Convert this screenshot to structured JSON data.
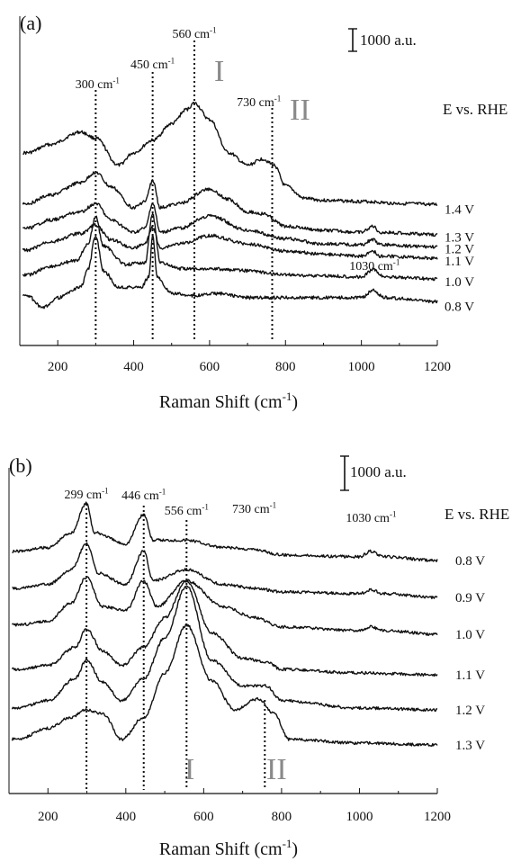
{
  "chart_data": [
    {
      "type": "line",
      "panel_label": "(a)",
      "xlabel": "Raman Shift (cm",
      "xlabel_sup": "-1",
      "xlabel_close": ")",
      "xlim": [
        100,
        1200
      ],
      "xticks": [
        200,
        400,
        600,
        800,
        1000,
        1200
      ],
      "scale_bar": "1000 a.u.",
      "legend_title": "E vs. RHE",
      "grid": false,
      "peaks": [
        {
          "x": 300,
          "label": "300 cm",
          "sup": "-1"
        },
        {
          "x": 450,
          "label": "450 cm",
          "sup": "-1"
        },
        {
          "x": 560,
          "label": "560 cm",
          "sup": "-1"
        },
        {
          "x": 730,
          "label": "730 cm",
          "sup": "-1"
        },
        {
          "x": 1030,
          "label": "1030 cm",
          "sup": "-1"
        }
      ],
      "bands": [
        "I",
        "II"
      ],
      "series": [
        {
          "name": "1.4 V",
          "offset": 4.8,
          "points": [
            [
              120,
              2.6
            ],
            [
              180,
              3.0
            ],
            [
              260,
              3.6
            ],
            [
              300,
              3.3
            ],
            [
              360,
              2.0
            ],
            [
              400,
              2.6
            ],
            [
              450,
              3.2
            ],
            [
              500,
              4.0
            ],
            [
              540,
              4.7
            ],
            [
              560,
              5.0
            ],
            [
              600,
              4.2
            ],
            [
              650,
              2.6
            ],
            [
              700,
              2.0
            ],
            [
              740,
              2.3
            ],
            [
              770,
              2.0
            ],
            [
              800,
              1.0
            ],
            [
              850,
              0.4
            ],
            [
              900,
              0.3
            ],
            [
              1000,
              0.25
            ],
            [
              1100,
              0.15
            ],
            [
              1200,
              0.1
            ]
          ]
        },
        {
          "name": "1.3 V",
          "offset": 3.35,
          "points": [
            [
              120,
              1.6
            ],
            [
              180,
              2.0
            ],
            [
              260,
              2.6
            ],
            [
              300,
              3.1
            ],
            [
              340,
              2.4
            ],
            [
              400,
              1.4
            ],
            [
              430,
              1.7
            ],
            [
              450,
              2.7
            ],
            [
              470,
              1.4
            ],
            [
              520,
              1.6
            ],
            [
              600,
              2.3
            ],
            [
              650,
              1.8
            ],
            [
              700,
              1.2
            ],
            [
              740,
              1.1
            ],
            [
              800,
              0.5
            ],
            [
              900,
              0.3
            ],
            [
              1000,
              0.2
            ],
            [
              1030,
              0.5
            ],
            [
              1050,
              0.2
            ],
            [
              1200,
              0.1
            ]
          ]
        },
        {
          "name": "1.2 V",
          "offset": 2.75,
          "points": [
            [
              120,
              1.0
            ],
            [
              180,
              1.4
            ],
            [
              260,
              1.8
            ],
            [
              300,
              2.2
            ],
            [
              340,
              1.4
            ],
            [
              400,
              0.8
            ],
            [
              430,
              1.0
            ],
            [
              450,
              2.2
            ],
            [
              470,
              0.8
            ],
            [
              520,
              1.0
            ],
            [
              600,
              1.6
            ],
            [
              700,
              0.9
            ],
            [
              800,
              0.5
            ],
            [
              900,
              0.25
            ],
            [
              1000,
              0.2
            ],
            [
              1030,
              0.45
            ],
            [
              1050,
              0.2
            ],
            [
              1200,
              0.1
            ]
          ]
        },
        {
          "name": "1.1 V",
          "offset": 2.2,
          "points": [
            [
              120,
              0.5
            ],
            [
              180,
              0.9
            ],
            [
              260,
              1.3
            ],
            [
              300,
              1.7
            ],
            [
              340,
              1.0
            ],
            [
              400,
              0.6
            ],
            [
              430,
              0.8
            ],
            [
              450,
              1.6
            ],
            [
              470,
              0.6
            ],
            [
              520,
              0.8
            ],
            [
              600,
              1.2
            ],
            [
              700,
              0.8
            ],
            [
              800,
              0.45
            ],
            [
              900,
              0.3
            ],
            [
              1000,
              0.2
            ],
            [
              1030,
              0.45
            ],
            [
              1050,
              0.2
            ],
            [
              1200,
              0.1
            ]
          ]
        },
        {
          "name": "1.0 V",
          "offset": 1.2,
          "points": [
            [
              120,
              0.3
            ],
            [
              180,
              0.7
            ],
            [
              250,
              1.0
            ],
            [
              280,
              1.8
            ],
            [
              300,
              3.1
            ],
            [
              320,
              1.7
            ],
            [
              380,
              0.8
            ],
            [
              430,
              0.9
            ],
            [
              450,
              3.2
            ],
            [
              470,
              0.9
            ],
            [
              520,
              0.6
            ],
            [
              600,
              0.6
            ],
            [
              700,
              0.5
            ],
            [
              800,
              0.3
            ],
            [
              900,
              0.25
            ],
            [
              1000,
              0.2
            ],
            [
              1030,
              0.55
            ],
            [
              1060,
              0.2
            ],
            [
              1200,
              0.1
            ]
          ]
        },
        {
          "name": "0.8 V",
          "offset": 0.0,
          "points": [
            [
              120,
              0.5
            ],
            [
              160,
              -0.1
            ],
            [
              200,
              0.4
            ],
            [
              260,
              0.9
            ],
            [
              280,
              1.8
            ],
            [
              300,
              3.4
            ],
            [
              320,
              1.7
            ],
            [
              360,
              0.9
            ],
            [
              420,
              0.9
            ],
            [
              440,
              1.4
            ],
            [
              450,
              3.4
            ],
            [
              462,
              1.4
            ],
            [
              500,
              0.6
            ],
            [
              560,
              0.5
            ],
            [
              620,
              0.6
            ],
            [
              700,
              0.4
            ],
            [
              800,
              0.4
            ],
            [
              900,
              0.4
            ],
            [
              1000,
              0.4
            ],
            [
              1030,
              0.75
            ],
            [
              1060,
              0.4
            ],
            [
              1200,
              0.2
            ]
          ]
        }
      ]
    },
    {
      "type": "line",
      "panel_label": "(b)",
      "xlabel": "Raman Shift (cm",
      "xlabel_sup": "-1",
      "xlabel_close": ")",
      "xlim": [
        100,
        1200
      ],
      "xticks": [
        200,
        400,
        600,
        800,
        1000,
        1200
      ],
      "scale_bar": "1000 a.u.",
      "legend_title": "E vs. RHE",
      "grid": false,
      "peaks": [
        {
          "x": 299,
          "label": "299 cm",
          "sup": "-1"
        },
        {
          "x": 446,
          "label": "446 cm",
          "sup": "-1"
        },
        {
          "x": 556,
          "label": "556 cm",
          "sup": "-1"
        },
        {
          "x": 730,
          "label": "730 cm",
          "sup": "-1"
        },
        {
          "x": 1030,
          "label": "1030 cm",
          "sup": "-1"
        }
      ],
      "bands": [
        "I",
        "II"
      ],
      "series": [
        {
          "name": "0.8 V",
          "offset": 5.0,
          "points": [
            [
              120,
              0.3
            ],
            [
              200,
              0.4
            ],
            [
              260,
              0.8
            ],
            [
              299,
              1.6
            ],
            [
              320,
              0.8
            ],
            [
              400,
              0.5
            ],
            [
              446,
              1.3
            ],
            [
              470,
              0.6
            ],
            [
              556,
              0.6
            ],
            [
              650,
              0.4
            ],
            [
              730,
              0.35
            ],
            [
              800,
              0.2
            ],
            [
              1000,
              0.15
            ],
            [
              1030,
              0.3
            ],
            [
              1060,
              0.15
            ],
            [
              1200,
              0.05
            ]
          ]
        },
        {
          "name": "0.9 V",
          "offset": 4.0,
          "points": [
            [
              120,
              0.3
            ],
            [
              200,
              0.4
            ],
            [
              260,
              0.8
            ],
            [
              299,
              1.5
            ],
            [
              330,
              0.7
            ],
            [
              400,
              0.4
            ],
            [
              446,
              1.3
            ],
            [
              470,
              0.5
            ],
            [
              556,
              0.8
            ],
            [
              650,
              0.4
            ],
            [
              730,
              0.3
            ],
            [
              800,
              0.2
            ],
            [
              1000,
              0.15
            ],
            [
              1030,
              0.25
            ],
            [
              1060,
              0.15
            ],
            [
              1200,
              0.05
            ]
          ]
        },
        {
          "name": "1.0 V",
          "offset": 3.0,
          "points": [
            [
              120,
              0.3
            ],
            [
              200,
              0.4
            ],
            [
              260,
              0.9
            ],
            [
              299,
              1.6
            ],
            [
              340,
              0.8
            ],
            [
              400,
              0.7
            ],
            [
              446,
              1.5
            ],
            [
              480,
              0.8
            ],
            [
              556,
              1.5
            ],
            [
              650,
              0.8
            ],
            [
              730,
              0.5
            ],
            [
              800,
              0.25
            ],
            [
              1000,
              0.15
            ],
            [
              1030,
              0.25
            ],
            [
              1060,
              0.15
            ],
            [
              1200,
              0.05
            ]
          ]
        },
        {
          "name": "1.1 V",
          "offset": 1.9,
          "points": [
            [
              120,
              0.2
            ],
            [
              200,
              0.3
            ],
            [
              270,
              0.8
            ],
            [
              299,
              1.3
            ],
            [
              340,
              0.7
            ],
            [
              390,
              0.3
            ],
            [
              446,
              0.8
            ],
            [
              500,
              1.6
            ],
            [
              556,
              2.6
            ],
            [
              620,
              1.2
            ],
            [
              700,
              0.5
            ],
            [
              760,
              0.4
            ],
            [
              800,
              0.2
            ],
            [
              1000,
              0.1
            ],
            [
              1200,
              0.05
            ]
          ]
        },
        {
          "name": "1.2 V",
          "offset": 0.95,
          "points": [
            [
              120,
              0.1
            ],
            [
              200,
              0.3
            ],
            [
              270,
              0.9
            ],
            [
              299,
              1.4
            ],
            [
              340,
              0.8
            ],
            [
              390,
              0.3
            ],
            [
              446,
              0.9
            ],
            [
              500,
              2.0
            ],
            [
              556,
              3.4
            ],
            [
              620,
              1.4
            ],
            [
              700,
              0.7
            ],
            [
              760,
              0.7
            ],
            [
              800,
              0.3
            ],
            [
              1000,
              0.1
            ],
            [
              1200,
              0.05
            ]
          ]
        },
        {
          "name": "1.3 V",
          "offset": 0.0,
          "points": [
            [
              120,
              0.2
            ],
            [
              200,
              0.5
            ],
            [
              260,
              0.8
            ],
            [
              299,
              1.0
            ],
            [
              340,
              0.9
            ],
            [
              390,
              0.2
            ],
            [
              446,
              0.8
            ],
            [
              500,
              2.0
            ],
            [
              556,
              3.3
            ],
            [
              620,
              1.8
            ],
            [
              680,
              1.0
            ],
            [
              740,
              1.3
            ],
            [
              780,
              0.9
            ],
            [
              820,
              0.2
            ],
            [
              1000,
              0.1
            ],
            [
              1200,
              0.05
            ]
          ]
        }
      ]
    }
  ]
}
